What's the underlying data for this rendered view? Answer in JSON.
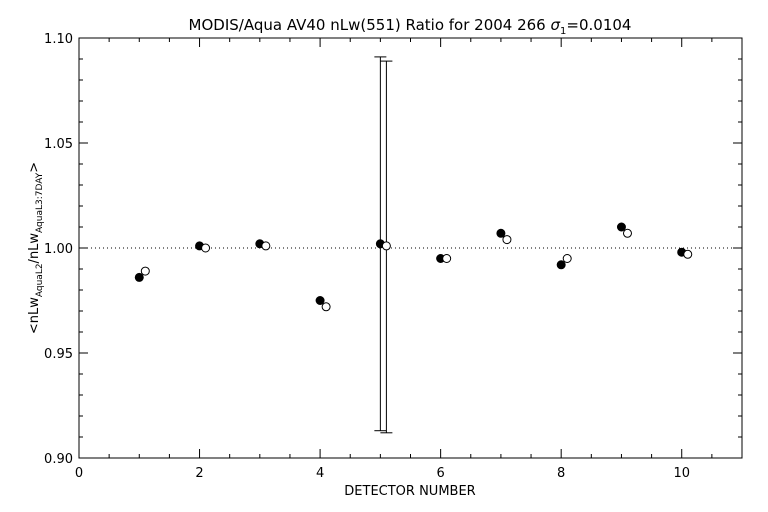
{
  "chart_data": {
    "type": "scatter",
    "title": "MODIS/Aqua AV40 nLw(551) Ratio for 2004 266 σ₁=0.0104",
    "title_parts": {
      "main": "MODIS/Aqua AV40 nLw(551) Ratio for 2004 266 ",
      "sigma": "σ",
      "sigma_sub": "1",
      "sigma_value": "=0.0104"
    },
    "xlabel": "DETECTOR NUMBER",
    "ylabel": "<nLw_AquaL2/nLw_AquaL3:7DAY>",
    "ylabel_parts": {
      "open": "<nLw",
      "sub1": "AquaL2",
      "mid": "/nLw",
      "sub2": "AquaL3:7DAY",
      "close": ">"
    },
    "xlim": [
      0,
      11
    ],
    "ylim": [
      0.9,
      1.1
    ],
    "x_ticks": [
      0,
      2,
      4,
      6,
      8,
      10
    ],
    "x_tick_labels": [
      "0",
      "2",
      "4",
      "6",
      "8",
      "10"
    ],
    "y_ticks": [
      0.9,
      0.95,
      1.0,
      1.05,
      1.1
    ],
    "y_tick_labels": [
      "0.90",
      "0.95",
      "1.00",
      "1.05",
      "1.10"
    ],
    "reference_line": {
      "y": 1.0,
      "style": "dotted"
    },
    "grid": false,
    "legend": "none",
    "series": [
      {
        "marker": "filled-circle",
        "x": [
          1,
          2,
          3,
          4,
          5,
          6,
          7,
          8,
          9,
          10
        ],
        "y": [
          0.986,
          1.001,
          1.002,
          0.975,
          1.002,
          0.995,
          1.007,
          0.992,
          1.01,
          0.998
        ],
        "error_bars": [
          {
            "x": 5,
            "low": 0.913,
            "high": 1.091
          }
        ]
      },
      {
        "marker": "open-circle",
        "x": [
          1.1,
          2.1,
          3.1,
          4.1,
          5.1,
          6.1,
          7.1,
          8.1,
          9.1,
          10.1
        ],
        "y": [
          0.989,
          1.0,
          1.001,
          0.972,
          1.001,
          0.995,
          1.004,
          0.995,
          1.007,
          0.997
        ],
        "error_bars": [
          {
            "x": 5.1,
            "low": 0.912,
            "high": 1.089
          }
        ]
      }
    ],
    "colors": {
      "axis": "#000000",
      "background": "#ffffff"
    }
  }
}
